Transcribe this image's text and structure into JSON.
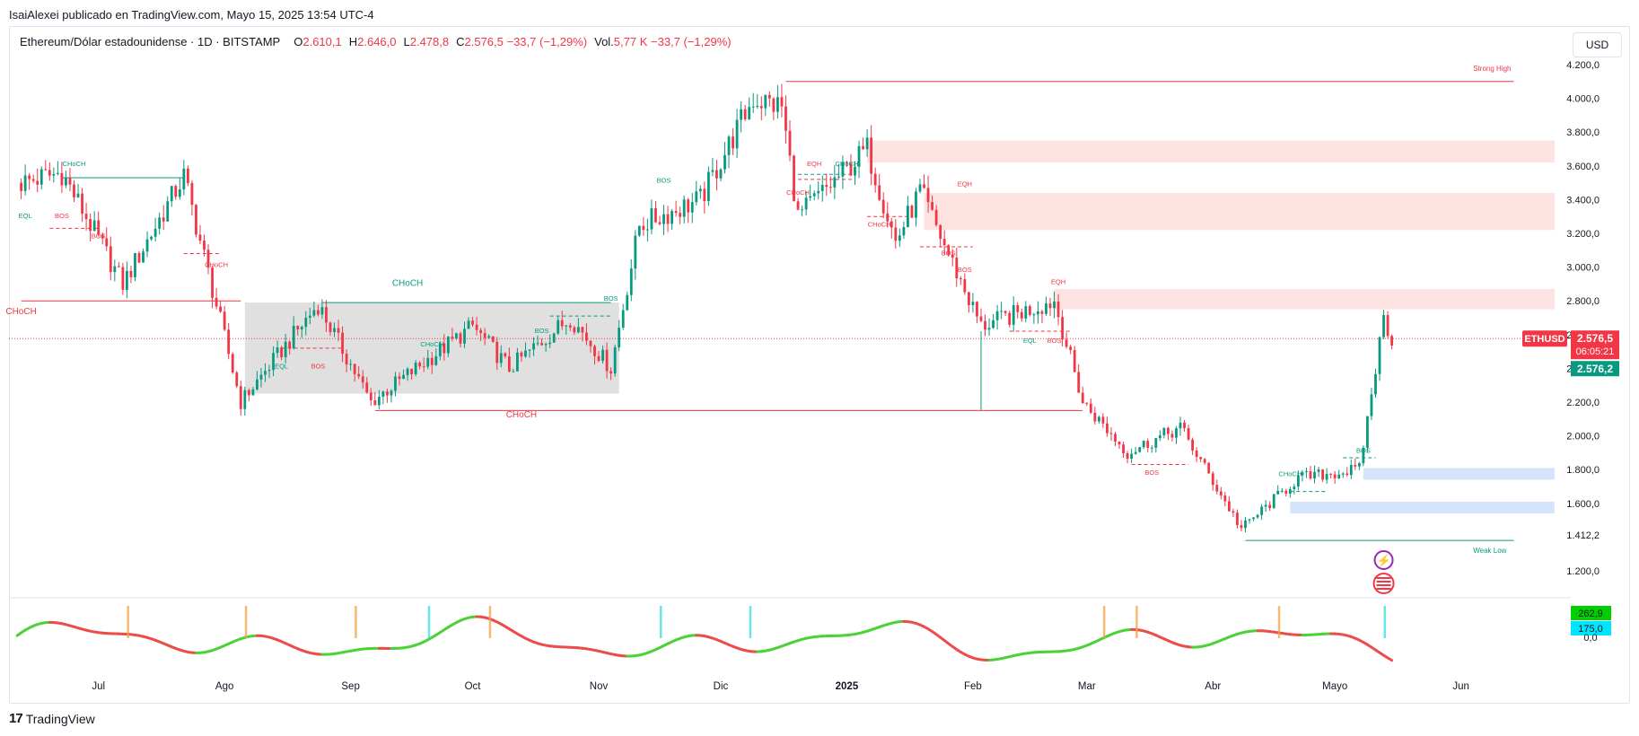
{
  "header": {
    "published_line": "IsaiAlexei publicado en TradingView.com, Mayo 15, 2025 13:54 UTC-4",
    "symbol_line": "Ethereum/Dólar estadounidense · 1D · BITSTAMP",
    "ohlc": [
      {
        "k": "O",
        "v": "2.610,1"
      },
      {
        "k": "H",
        "v": "2.646,0"
      },
      {
        "k": "L",
        "v": "2.478,8"
      },
      {
        "k": "C",
        "v": "2.576,5  −33,7 (−1,29%)"
      },
      {
        "k": "Vol.",
        "v": "5,77 K  −33,7 (−1,29%)"
      }
    ]
  },
  "currency_button": "USD",
  "footer": {
    "logo_text": "17",
    "brand": "TradingView"
  },
  "colors": {
    "up": "#089981",
    "down": "#f23645",
    "supply_zone": "#fde2e2",
    "demand_zone": "#d6e4fb",
    "range_box": "#e0e0e0"
  },
  "chart_data": {
    "type": "candlestick",
    "symbol": "ETHUSD",
    "y_ticks": [
      1200,
      1412.2,
      1600,
      1800,
      2000,
      2200,
      2400,
      2600,
      2800,
      3000,
      3200,
      3400,
      3600,
      3800,
      4000,
      4200
    ],
    "y_tick_labels": [
      "1.200,0",
      "1.412,2",
      "1.600,0",
      "1.800,0",
      "2.000,0",
      "2.200,0",
      "2.400,0",
      "2.600,0",
      "2.800,0",
      "3.000,0",
      "3.200,0",
      "3.400,0",
      "3.600,0",
      "3.800,0",
      "4.000,0",
      "4.200,0"
    ],
    "ylim": [
      1100,
      4300
    ],
    "x_labels": [
      "Jul",
      "Ago",
      "Sep",
      "Oct",
      "Nov",
      "Dic",
      "2025",
      "Feb",
      "Mar",
      "Abr",
      "Mayo",
      "Jun"
    ],
    "key_points": [
      {
        "date": "2024-06-12",
        "price": 3500
      },
      {
        "date": "2024-06-22",
        "price": 3560
      },
      {
        "date": "2024-07-07",
        "price": 2900
      },
      {
        "date": "2024-07-22",
        "price": 3540
      },
      {
        "date": "2024-08-05",
        "price": 2200
      },
      {
        "date": "2024-08-24",
        "price": 2780
      },
      {
        "date": "2024-09-06",
        "price": 2200
      },
      {
        "date": "2024-10-01",
        "price": 2650
      },
      {
        "date": "2024-10-10",
        "price": 2400
      },
      {
        "date": "2024-10-25",
        "price": 2700
      },
      {
        "date": "2024-11-04",
        "price": 2400
      },
      {
        "date": "2024-11-11",
        "price": 3250
      },
      {
        "date": "2024-11-26",
        "price": 3400
      },
      {
        "date": "2024-12-09",
        "price": 4000
      },
      {
        "date": "2024-12-16",
        "price": 3950
      },
      {
        "date": "2024-12-20",
        "price": 3300
      },
      {
        "date": "2025-01-06",
        "price": 3700
      },
      {
        "date": "2025-01-13",
        "price": 3150
      },
      {
        "date": "2025-01-19",
        "price": 3450
      },
      {
        "date": "2025-02-03",
        "price": 2650
      },
      {
        "date": "2025-02-21",
        "price": 2800
      },
      {
        "date": "2025-02-28",
        "price": 2200
      },
      {
        "date": "2025-03-11",
        "price": 1900
      },
      {
        "date": "2025-03-24",
        "price": 2050
      },
      {
        "date": "2025-04-08",
        "price": 1450
      },
      {
        "date": "2025-04-22",
        "price": 1750
      },
      {
        "date": "2025-05-07",
        "price": 1800
      },
      {
        "date": "2025-05-13",
        "price": 2700
      },
      {
        "date": "2025-05-15",
        "price": 2576.5
      }
    ],
    "horizontal_levels": [
      {
        "label": "Strong High",
        "price": 4100,
        "color": "#f23645"
      },
      {
        "label": "Weak Low",
        "price": 1412.2,
        "color": "#089981"
      }
    ],
    "zones": [
      {
        "kind": "supply",
        "from": "2025-01-06",
        "to": "2025-06-24",
        "low": 3620,
        "high": 3750
      },
      {
        "kind": "supply",
        "from": "2025-01-20",
        "to": "2025-06-24",
        "low": 3220,
        "high": 3440
      },
      {
        "kind": "supply",
        "from": "2025-02-21",
        "to": "2025-06-24",
        "low": 2750,
        "high": 2870
      },
      {
        "kind": "demand",
        "from": "2025-05-08",
        "to": "2025-06-24",
        "low": 1740,
        "high": 1810
      },
      {
        "kind": "demand",
        "from": "2025-04-20",
        "to": "2025-06-24",
        "low": 1540,
        "high": 1610
      },
      {
        "kind": "range",
        "from": "2024-08-06",
        "to": "2024-11-06",
        "low": 2250,
        "high": 2790
      }
    ],
    "structure_labels": [
      {
        "text": "CHoCH",
        "date": "2024-06-25",
        "price": 3600,
        "color": "#089981"
      },
      {
        "text": "EQL",
        "date": "2024-06-13",
        "price": 3290,
        "color": "#089981"
      },
      {
        "text": "BOS",
        "date": "2024-06-22",
        "price": 3290,
        "color": "#f23645"
      },
      {
        "text": "BOS",
        "date": "2024-07-01",
        "price": 3170,
        "color": "#f23645"
      },
      {
        "text": "CHoCH",
        "date": "2024-07-30",
        "price": 3000,
        "color": "#f23645"
      },
      {
        "text": "CHoCH",
        "date": "2024-06-12",
        "price": 2720,
        "color": "#f23645"
      },
      {
        "text": "CHoCH",
        "date": "2024-09-15",
        "price": 2890,
        "color": "#089981"
      },
      {
        "text": "EQL",
        "date": "2024-08-15",
        "price": 2400,
        "color": "#089981"
      },
      {
        "text": "BOS",
        "date": "2024-08-24",
        "price": 2400,
        "color": "#f23645"
      },
      {
        "text": "CHoCH",
        "date": "2024-09-21",
        "price": 2530,
        "color": "#089981"
      },
      {
        "text": "BOS",
        "date": "2024-10-18",
        "price": 2610,
        "color": "#089981"
      },
      {
        "text": "BOS",
        "date": "2024-11-04",
        "price": 2800,
        "color": "#089981"
      },
      {
        "text": "CHoCH",
        "date": "2024-10-13",
        "price": 2110,
        "color": "#f23645"
      },
      {
        "text": "BOS",
        "date": "2024-11-17",
        "price": 3500,
        "color": "#089981"
      },
      {
        "text": "EQH",
        "date": "2024-12-24",
        "price": 3600,
        "color": "#f23645"
      },
      {
        "text": "CHoCH",
        "date": "2025-01-01",
        "price": 3600,
        "color": "#089981"
      },
      {
        "text": "CHoCH",
        "date": "2024-12-20",
        "price": 3430,
        "color": "#f23645"
      },
      {
        "text": "CHoCH",
        "date": "2025-01-09",
        "price": 3240,
        "color": "#f23645"
      },
      {
        "text": "EQH",
        "date": "2025-01-30",
        "price": 3480,
        "color": "#f23645"
      },
      {
        "text": "BOS",
        "date": "2025-01-26",
        "price": 3070,
        "color": "#f23645"
      },
      {
        "text": "BOS",
        "date": "2025-01-30",
        "price": 2970,
        "color": "#f23645"
      },
      {
        "text": "EQH",
        "date": "2025-02-22",
        "price": 2900,
        "color": "#f23645"
      },
      {
        "text": "EQL",
        "date": "2025-02-15",
        "price": 2550,
        "color": "#089981"
      },
      {
        "text": "BOS",
        "date": "2025-02-21",
        "price": 2550,
        "color": "#f23645"
      },
      {
        "text": "BOS",
        "date": "2025-03-17",
        "price": 1770,
        "color": "#f23645"
      },
      {
        "text": "CHoCH",
        "date": "2025-04-20",
        "price": 1760,
        "color": "#089981"
      },
      {
        "text": "BOS",
        "date": "2025-05-08",
        "price": 1900,
        "color": "#089981"
      }
    ],
    "price_label": {
      "symbol": "ETHUSD",
      "price": "2.576,5",
      "countdown": "06:05:21",
      "price2": "2.576,2"
    },
    "oscillator": {
      "labels": [
        "262,9",
        "175,0",
        "0,0"
      ]
    }
  }
}
